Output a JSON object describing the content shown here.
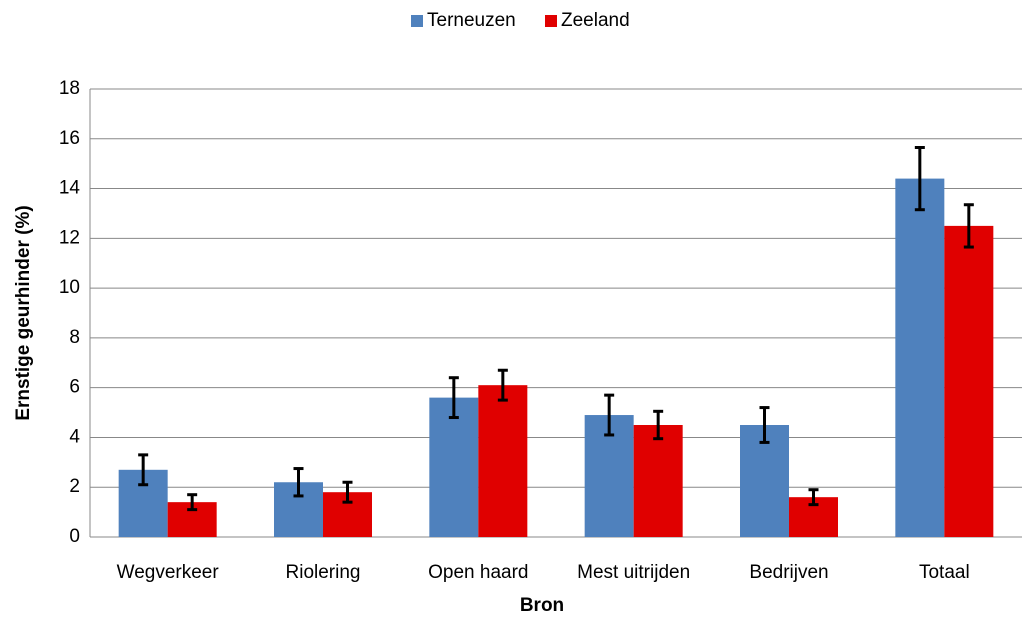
{
  "chart_data": {
    "type": "bar",
    "x_label": "Bron",
    "y_label": "Ernstige geurhinder (%)",
    "categories": [
      "Wegverkeer",
      "Riolering",
      "Open haard",
      "Mest uitrijden",
      "Bedrijven",
      "Totaal"
    ],
    "series": [
      {
        "name": "Terneuzen",
        "color": "#4f81bd",
        "values": [
          2.7,
          2.2,
          5.6,
          4.9,
          4.5,
          14.4
        ],
        "errors": [
          0.6,
          0.55,
          0.8,
          0.8,
          0.7,
          1.25
        ]
      },
      {
        "name": "Zeeland",
        "color": "#e00000",
        "values": [
          1.4,
          1.8,
          6.1,
          4.5,
          1.6,
          12.5
        ],
        "errors": [
          0.3,
          0.4,
          0.6,
          0.55,
          0.3,
          0.85
        ]
      }
    ],
    "ylim": [
      0,
      18
    ],
    "yticks": [
      0,
      2,
      4,
      6,
      8,
      10,
      12,
      14,
      16,
      18
    ],
    "grid": true,
    "legend": "top"
  }
}
